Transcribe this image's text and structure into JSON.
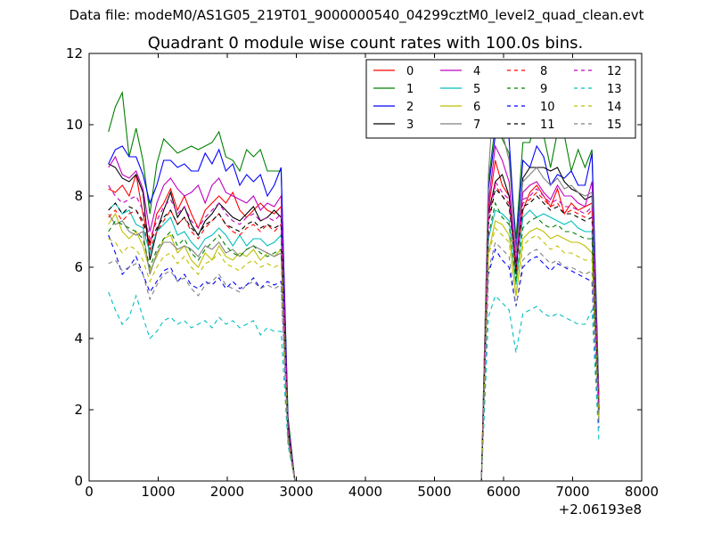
{
  "figure": {
    "suptitle": "Data file: modeM0/AS1G05_219T01_9000000540_04299cztM0_level2_quad_clean.evt"
  },
  "chart_data": {
    "type": "line",
    "title": "Quadrant 0 module wise count rates with 100.0s bins.",
    "xlabel": "",
    "ylabel": "",
    "x_offset_label": "+2.06193e8",
    "xlim": [
      0,
      8000
    ],
    "ylim": [
      0,
      12
    ],
    "xticks": [
      0,
      1000,
      2000,
      3000,
      4000,
      5000,
      6000,
      7000,
      8000
    ],
    "yticks": [
      0,
      2,
      4,
      6,
      8,
      10,
      12
    ],
    "grid": false,
    "legend_position": "top-right",
    "legend_columns": 4,
    "x": [
      280,
      380,
      480,
      580,
      680,
      780,
      880,
      980,
      1080,
      1180,
      1280,
      1380,
      1480,
      1580,
      1680,
      1780,
      1880,
      1980,
      2080,
      2180,
      2280,
      2380,
      2480,
      2580,
      2680,
      2780,
      2880,
      2980,
      3080,
      3180,
      3280,
      3380,
      3480,
      3580,
      3680,
      3780,
      3880,
      3980,
      4080,
      4180,
      4280,
      4380,
      4480,
      4580,
      4680,
      4780,
      4880,
      4980,
      5080,
      5180,
      5280,
      5380,
      5480,
      5580,
      5680,
      5780,
      5880,
      5980,
      6080,
      6180,
      6280,
      6380,
      6480,
      6580,
      6680,
      6780,
      6880,
      6980,
      7080,
      7180,
      7280,
      7380
    ],
    "series": [
      {
        "name": "0",
        "color": "#ff0000",
        "dash": "solid",
        "values": [
          8.2,
          8.1,
          8.3,
          8.0,
          8.6,
          7.5,
          6.6,
          7.5,
          7.8,
          8.2,
          7.6,
          8.0,
          7.5,
          7.1,
          7.6,
          7.8,
          8.0,
          7.8,
          8.1,
          7.6,
          7.4,
          7.6,
          7.8,
          7.6,
          7.5,
          7.7,
          1.5,
          0,
          0,
          0,
          0,
          0,
          0,
          0,
          0,
          0,
          0,
          0,
          0,
          0,
          0,
          0,
          0,
          0,
          0,
          0,
          0,
          0,
          0,
          0,
          0,
          0,
          0,
          0,
          0,
          7.6,
          9.0,
          8.3,
          8.0,
          6.1,
          7.6,
          8.1,
          8.3,
          8.0,
          7.7,
          8.2,
          7.5,
          7.8,
          7.6,
          7.7,
          7.8,
          2.0
        ]
      },
      {
        "name": "1",
        "color": "#008000",
        "dash": "solid",
        "values": [
          9.8,
          10.5,
          10.9,
          9.1,
          9.9,
          9.0,
          7.5,
          8.9,
          9.6,
          9.4,
          9.2,
          9.3,
          9.4,
          9.3,
          9.4,
          9.5,
          9.8,
          9.1,
          9.0,
          8.7,
          9.3,
          9.1,
          9.3,
          8.7,
          8.7,
          8.7,
          1.8,
          0,
          0,
          0,
          0,
          0,
          0,
          0,
          0,
          0,
          0,
          0,
          0,
          0,
          0,
          0,
          0,
          0,
          0,
          0,
          0,
          0,
          0,
          0,
          0,
          0,
          0,
          0,
          0,
          8.4,
          10.0,
          9.6,
          9.2,
          6.8,
          9.5,
          9.5,
          10.3,
          9.7,
          8.8,
          9.8,
          9.7,
          8.7,
          9.3,
          8.8,
          9.3,
          2.4
        ]
      },
      {
        "name": "2",
        "color": "#0000ff",
        "dash": "solid",
        "values": [
          8.9,
          9.3,
          9.4,
          9.1,
          9.1,
          8.6,
          7.8,
          8.3,
          9.0,
          9.0,
          8.8,
          8.9,
          8.7,
          8.7,
          9.2,
          8.9,
          9.3,
          8.7,
          8.9,
          8.3,
          8.6,
          8.4,
          8.6,
          8.0,
          8.3,
          8.8,
          1.6,
          0,
          0,
          0,
          0,
          0,
          0,
          0,
          0,
          0,
          0,
          0,
          0,
          0,
          0,
          0,
          0,
          0,
          0,
          0,
          0,
          0,
          0,
          0,
          0,
          0,
          0,
          0,
          0,
          8.2,
          9.7,
          10.4,
          9.6,
          6.5,
          9.0,
          8.8,
          9.4,
          9.1,
          8.3,
          8.6,
          8.5,
          8.7,
          8.3,
          8.3,
          9.2,
          2.2
        ]
      },
      {
        "name": "3",
        "color": "#000000",
        "dash": "solid",
        "values": [
          8.9,
          8.8,
          8.5,
          8.4,
          8.6,
          8.1,
          6.2,
          7.0,
          7.6,
          8.1,
          7.4,
          7.7,
          7.2,
          6.9,
          7.3,
          7.5,
          7.8,
          7.6,
          7.4,
          7.3,
          7.5,
          7.7,
          7.3,
          7.4,
          7.6,
          7.4,
          1.4,
          0,
          0,
          0,
          0,
          0,
          0,
          0,
          0,
          0,
          0,
          0,
          0,
          0,
          0,
          0,
          0,
          0,
          0,
          0,
          0,
          0,
          0,
          0,
          0,
          0,
          0,
          0,
          0,
          7.5,
          8.4,
          8.6,
          8.0,
          5.8,
          8.5,
          8.8,
          8.8,
          8.8,
          8.7,
          8.8,
          8.4,
          8.2,
          8.1,
          7.9,
          8.0,
          1.9
        ]
      },
      {
        "name": "4",
        "color": "#bf00bf",
        "dash": "solid",
        "values": [
          8.8,
          9.1,
          8.6,
          8.5,
          8.7,
          8.2,
          7.0,
          7.8,
          8.3,
          8.5,
          8.2,
          8.0,
          8.1,
          8.3,
          7.8,
          8.3,
          8.5,
          8.1,
          8.0,
          7.9,
          7.8,
          8.0,
          7.6,
          7.8,
          7.7,
          8.0,
          1.5,
          0,
          0,
          0,
          0,
          0,
          0,
          0,
          0,
          0,
          0,
          0,
          0,
          0,
          0,
          0,
          0,
          0,
          0,
          0,
          0,
          0,
          0,
          0,
          0,
          0,
          0,
          0,
          0,
          7.8,
          9.4,
          9.0,
          8.4,
          6.1,
          8.1,
          8.3,
          8.4,
          8.1,
          7.9,
          8.3,
          8.0,
          8.0,
          7.8,
          7.7,
          8.4,
          2.1
        ]
      },
      {
        "name": "5",
        "color": "#00bfbf",
        "dash": "solid",
        "values": [
          7.6,
          7.8,
          7.5,
          7.6,
          7.2,
          7.1,
          6.4,
          7.0,
          7.2,
          7.4,
          6.9,
          7.0,
          6.7,
          6.5,
          6.8,
          6.9,
          7.1,
          6.9,
          6.6,
          6.9,
          6.6,
          6.8,
          6.8,
          6.6,
          6.7,
          6.9,
          1.3,
          0,
          0,
          0,
          0,
          0,
          0,
          0,
          0,
          0,
          0,
          0,
          0,
          0,
          0,
          0,
          0,
          0,
          0,
          0,
          0,
          0,
          0,
          0,
          0,
          0,
          0,
          0,
          0,
          6.8,
          7.6,
          7.5,
          7.3,
          5.5,
          7.4,
          7.6,
          7.4,
          7.5,
          7.4,
          7.3,
          7.2,
          7.3,
          7.1,
          7.0,
          7.0,
          1.8
        ]
      },
      {
        "name": "6",
        "color": "#bfbf00",
        "dash": "solid",
        "values": [
          7.2,
          7.5,
          7.0,
          6.8,
          7.0,
          6.6,
          5.9,
          6.3,
          6.8,
          6.9,
          6.4,
          6.6,
          6.2,
          6.0,
          6.4,
          6.2,
          6.6,
          6.3,
          6.2,
          6.4,
          6.3,
          6.5,
          6.2,
          6.4,
          6.3,
          6.5,
          1.2,
          0,
          0,
          0,
          0,
          0,
          0,
          0,
          0,
          0,
          0,
          0,
          0,
          0,
          0,
          0,
          0,
          0,
          0,
          0,
          0,
          0,
          0,
          0,
          0,
          0,
          0,
          0,
          0,
          6.4,
          7.3,
          7.2,
          6.9,
          5.2,
          6.8,
          7.0,
          7.1,
          7.0,
          6.8,
          6.9,
          6.8,
          6.7,
          6.7,
          6.6,
          6.4,
          1.7
        ]
      },
      {
        "name": "7",
        "color": "#808080",
        "dash": "solid",
        "values": [
          7.5,
          7.2,
          7.3,
          7.0,
          6.9,
          7.0,
          5.8,
          6.4,
          6.7,
          6.7,
          6.5,
          6.6,
          6.5,
          6.3,
          6.6,
          6.5,
          6.7,
          6.4,
          6.5,
          6.3,
          6.5,
          6.6,
          6.5,
          6.4,
          6.3,
          6.4,
          1.2,
          0,
          0,
          0,
          0,
          0,
          0,
          0,
          0,
          0,
          0,
          0,
          0,
          0,
          0,
          0,
          0,
          0,
          0,
          0,
          0,
          0,
          0,
          0,
          0,
          0,
          0,
          0,
          0,
          8.6,
          11.5,
          9.8,
          9.0,
          6.4,
          8.4,
          8.6,
          8.8,
          8.5,
          8.3,
          8.5,
          8.2,
          8.3,
          8.1,
          8.0,
          8.1,
          2.3
        ]
      },
      {
        "name": "8",
        "color": "#ff0000",
        "dash": "dashed",
        "values": [
          7.4,
          7.6,
          7.3,
          7.5,
          7.6,
          7.2,
          6.5,
          7.0,
          7.3,
          7.6,
          7.2,
          7.4,
          7.0,
          6.8,
          7.1,
          7.3,
          7.5,
          7.2,
          7.0,
          6.9,
          7.1,
          7.2,
          7.0,
          7.2,
          7.0,
          7.2,
          1.4,
          0,
          0,
          0,
          0,
          0,
          0,
          0,
          0,
          0,
          0,
          0,
          0,
          0,
          0,
          0,
          0,
          0,
          0,
          0,
          0,
          0,
          0,
          0,
          0,
          0,
          0,
          0,
          0,
          7.3,
          8.3,
          8.0,
          7.8,
          5.9,
          7.8,
          7.9,
          8.1,
          7.9,
          7.7,
          7.8,
          7.5,
          7.6,
          7.5,
          7.4,
          7.6,
          2.0
        ]
      },
      {
        "name": "9",
        "color": "#008000",
        "dash": "dashed",
        "values": [
          7.0,
          7.3,
          7.2,
          7.1,
          7.0,
          6.8,
          6.0,
          6.5,
          6.8,
          7.0,
          6.6,
          6.8,
          6.4,
          6.2,
          6.5,
          6.7,
          6.9,
          6.6,
          6.4,
          6.3,
          6.5,
          6.6,
          6.4,
          6.3,
          6.4,
          6.5,
          1.3,
          0,
          0,
          0,
          0,
          0,
          0,
          0,
          0,
          0,
          0,
          0,
          0,
          0,
          0,
          0,
          0,
          0,
          0,
          0,
          0,
          0,
          0,
          0,
          0,
          0,
          0,
          0,
          0,
          6.9,
          7.8,
          7.4,
          7.2,
          5.6,
          7.1,
          7.3,
          7.4,
          7.2,
          7.1,
          7.2,
          7.0,
          7.0,
          6.9,
          6.8,
          6.8,
          1.8
        ]
      },
      {
        "name": "10",
        "color": "#0000ff",
        "dash": "dashed",
        "values": [
          6.9,
          6.4,
          5.8,
          6.0,
          6.3,
          5.8,
          5.3,
          5.6,
          5.9,
          6.0,
          5.6,
          5.8,
          5.5,
          5.4,
          5.6,
          5.5,
          5.7,
          5.4,
          5.6,
          5.4,
          5.5,
          5.7,
          5.4,
          5.6,
          5.5,
          5.6,
          1.1,
          0,
          0,
          0,
          0,
          0,
          0,
          0,
          0,
          0,
          0,
          0,
          0,
          0,
          0,
          0,
          0,
          0,
          0,
          0,
          0,
          0,
          0,
          0,
          0,
          0,
          0,
          0,
          0,
          5.8,
          6.5,
          6.2,
          6.0,
          4.9,
          6.0,
          6.2,
          6.3,
          6.1,
          5.9,
          6.1,
          6.0,
          5.9,
          5.8,
          5.7,
          5.6,
          1.5
        ]
      },
      {
        "name": "11",
        "color": "#000000",
        "dash": "dashed",
        "values": [
          7.6,
          7.8,
          7.5,
          7.7,
          7.6,
          7.3,
          6.7,
          7.1,
          7.4,
          7.6,
          7.2,
          7.4,
          7.1,
          6.9,
          7.2,
          7.3,
          7.5,
          7.2,
          7.1,
          7.0,
          7.2,
          7.3,
          7.1,
          7.2,
          7.1,
          7.2,
          1.4,
          0,
          0,
          0,
          0,
          0,
          0,
          0,
          0,
          0,
          0,
          0,
          0,
          0,
          0,
          0,
          0,
          0,
          0,
          0,
          0,
          0,
          0,
          0,
          0,
          0,
          0,
          0,
          0,
          7.2,
          8.2,
          8.0,
          7.7,
          6.0,
          7.7,
          7.8,
          8.0,
          7.8,
          7.6,
          7.7,
          7.5,
          7.5,
          7.4,
          7.3,
          7.4,
          2.0
        ]
      },
      {
        "name": "12",
        "color": "#bf00bf",
        "dash": "dashed",
        "values": [
          8.3,
          8.0,
          7.8,
          7.9,
          8.0,
          7.6,
          6.8,
          7.3,
          7.7,
          7.9,
          7.5,
          7.7,
          7.3,
          7.1,
          7.4,
          7.6,
          7.8,
          7.5,
          7.3,
          7.2,
          7.4,
          7.5,
          7.3,
          7.4,
          7.3,
          7.5,
          1.5,
          0,
          0,
          0,
          0,
          0,
          0,
          0,
          0,
          0,
          0,
          0,
          0,
          0,
          0,
          0,
          0,
          0,
          0,
          0,
          0,
          0,
          0,
          0,
          0,
          0,
          0,
          0,
          0,
          7.4,
          8.4,
          8.1,
          7.9,
          6.2,
          7.9,
          8.0,
          8.2,
          8.0,
          7.8,
          7.9,
          7.7,
          7.7,
          7.6,
          7.5,
          7.7,
          2.1
        ]
      },
      {
        "name": "13",
        "color": "#00bfbf",
        "dash": "dashed",
        "values": [
          5.3,
          4.8,
          4.4,
          4.6,
          5.2,
          4.6,
          4.0,
          4.2,
          4.5,
          4.6,
          4.4,
          4.5,
          4.3,
          4.4,
          4.5,
          4.3,
          4.6,
          4.4,
          4.5,
          4.3,
          4.4,
          4.5,
          4.1,
          4.3,
          4.2,
          4.2,
          1.0,
          0,
          0,
          0,
          0,
          0,
          0,
          0,
          0,
          0,
          0,
          0,
          0,
          0,
          0,
          0,
          0,
          0,
          0,
          0,
          0,
          0,
          0,
          0,
          0,
          0,
          0,
          0,
          0,
          4.6,
          5.2,
          5.0,
          4.8,
          3.6,
          4.7,
          4.8,
          4.9,
          4.7,
          4.6,
          4.7,
          4.6,
          4.5,
          4.4,
          4.4,
          4.8,
          1.1
        ]
      },
      {
        "name": "14",
        "color": "#bfbf00",
        "dash": "dashed",
        "values": [
          6.8,
          6.7,
          6.4,
          6.6,
          6.5,
          6.2,
          5.6,
          6.0,
          6.3,
          6.4,
          6.1,
          6.3,
          6.0,
          5.8,
          6.1,
          6.2,
          6.4,
          6.1,
          6.0,
          5.9,
          6.1,
          6.2,
          6.0,
          6.1,
          6.0,
          6.1,
          1.2,
          0,
          0,
          0,
          0,
          0,
          0,
          0,
          0,
          0,
          0,
          0,
          0,
          0,
          0,
          0,
          0,
          0,
          0,
          0,
          0,
          0,
          0,
          0,
          0,
          0,
          0,
          0,
          0,
          6.3,
          7.1,
          6.9,
          6.7,
          5.2,
          6.6,
          6.8,
          6.9,
          6.7,
          6.5,
          6.6,
          6.4,
          6.4,
          6.3,
          6.2,
          6.2,
          1.7
        ]
      },
      {
        "name": "15",
        "color": "#808080",
        "dash": "dashed",
        "values": [
          6.1,
          6.2,
          5.9,
          6.0,
          6.1,
          5.8,
          5.1,
          5.5,
          5.8,
          5.9,
          5.6,
          5.7,
          5.4,
          5.2,
          5.5,
          5.6,
          5.8,
          5.5,
          5.4,
          5.3,
          5.5,
          5.6,
          5.4,
          5.5,
          5.4,
          5.5,
          1.1,
          0,
          0,
          0,
          0,
          0,
          0,
          0,
          0,
          0,
          0,
          0,
          0,
          0,
          0,
          0,
          0,
          0,
          0,
          0,
          0,
          0,
          0,
          0,
          0,
          0,
          0,
          0,
          0,
          5.9,
          6.7,
          6.5,
          6.3,
          4.9,
          6.2,
          6.4,
          6.5,
          6.3,
          6.1,
          6.2,
          6.0,
          6.0,
          5.9,
          5.8,
          5.9,
          1.6
        ]
      }
    ]
  }
}
